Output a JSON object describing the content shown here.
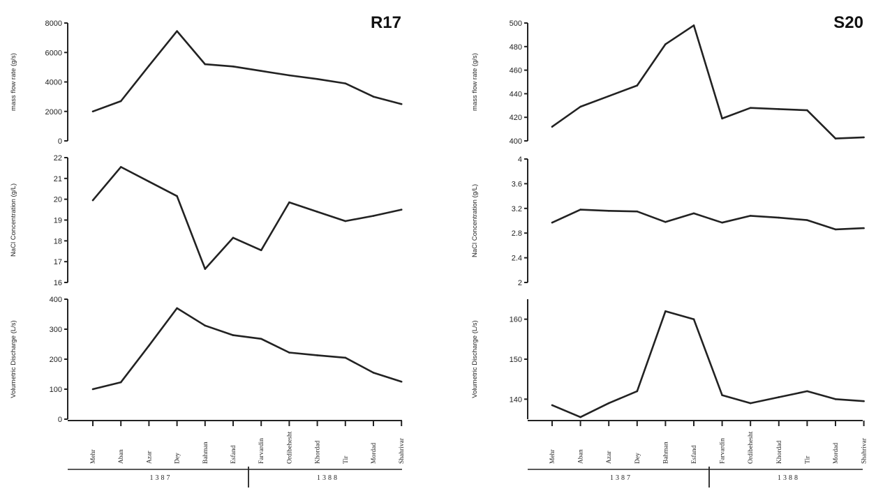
{
  "chart_data": [
    {
      "title": "R17",
      "type": "line",
      "categories": [
        "Mehr",
        "Aban",
        "Azar",
        "Dey",
        "Bahman",
        "Esfand",
        "Farvardin",
        "Ordibehesht",
        "Khordad",
        "Tir",
        "Mordad",
        "Shahrivar"
      ],
      "years": [
        {
          "label": "1387"
        },
        {
          "label": "1388"
        }
      ],
      "panels": [
        {
          "ylabel": "mass flow rate (g/s)",
          "ylim": [
            0,
            8000
          ],
          "yticks": [
            0,
            2000,
            4000,
            6000,
            8000
          ],
          "values": [
            2000,
            2700,
            5100,
            7450,
            5200,
            5050,
            4750,
            4450,
            4200,
            3900,
            3000,
            2500
          ]
        },
        {
          "ylabel": "NaCl Concentration (g/L)",
          "ylim": [
            16,
            22
          ],
          "yticks": [
            16,
            17,
            18,
            19,
            20,
            21,
            22
          ],
          "values": [
            19.95,
            21.55,
            20.85,
            20.15,
            16.65,
            18.15,
            17.55,
            19.85,
            19.4,
            18.95,
            19.2,
            19.5
          ]
        },
        {
          "ylabel": "Volumetric Discharge (L/s)",
          "ylim": [
            0,
            400
          ],
          "yticks": [
            0,
            100,
            200,
            300,
            400
          ],
          "values": [
            100,
            123,
            245,
            370,
            312,
            280,
            268,
            222,
            213,
            205,
            155,
            125
          ]
        }
      ]
    },
    {
      "title": "S20",
      "type": "line",
      "categories": [
        "Mehr",
        "Aban",
        "Azar",
        "Dey",
        "Bahman",
        "Esfand",
        "Farvardin",
        "Ordibehesht",
        "Khordad",
        "Tir",
        "Mordad",
        "Shahrivar"
      ],
      "years": [
        {
          "label": "1387"
        },
        {
          "label": "1388"
        }
      ],
      "panels": [
        {
          "ylabel": "mass flow rate (g/s)",
          "ylim": [
            400,
            500
          ],
          "yticks": [
            400,
            420,
            440,
            460,
            480,
            500
          ],
          "values": [
            412,
            429,
            438,
            447,
            482,
            498,
            419,
            428,
            427,
            426,
            402,
            403
          ]
        },
        {
          "ylabel": "NaCl Concentration (g/L)",
          "ylim": [
            2,
            4
          ],
          "yticks": [
            2,
            2.4,
            2.8,
            3.2,
            3.6,
            4
          ],
          "values": [
            2.97,
            3.18,
            3.16,
            3.15,
            2.98,
            3.12,
            2.97,
            3.08,
            3.05,
            3.01,
            2.86,
            2.88
          ]
        },
        {
          "ylabel": "Volumetric Discharge (L/s)",
          "ylim": [
            135,
            165
          ],
          "yticks": [
            140,
            150,
            160
          ],
          "values": [
            138.5,
            135.5,
            139,
            142,
            162,
            160,
            141,
            139,
            140.5,
            142,
            140,
            139.5
          ]
        }
      ]
    }
  ],
  "month_labels": [
    "Mehr",
    "Aban",
    "Azar",
    "Dey",
    "Bahman",
    "Esfand",
    "Farvardin",
    "Ordibehesht",
    "Khordad",
    "Tir",
    "Mordad",
    "Shahrivar"
  ]
}
